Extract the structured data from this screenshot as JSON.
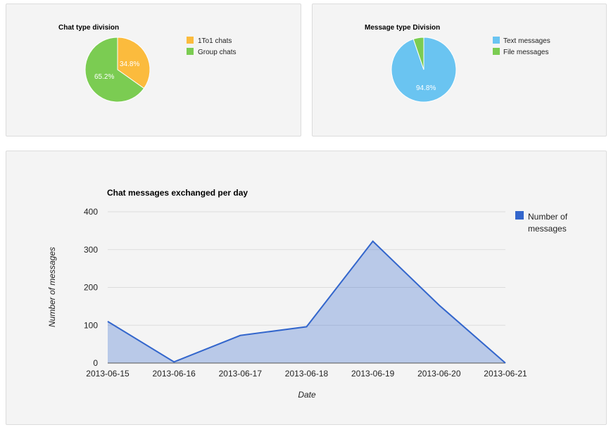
{
  "chart_data": [
    {
      "type": "pie",
      "title": "Chat type division",
      "categories": [
        "1To1 chats",
        "Group chats"
      ],
      "values": [
        34.8,
        65.2
      ],
      "labels": [
        "34.8%",
        "65.2%"
      ],
      "colors": [
        "#fbbb3d",
        "#7bcc52"
      ],
      "legend": "right"
    },
    {
      "type": "pie",
      "title": "Message type Division",
      "categories": [
        "Text messages",
        "File messages"
      ],
      "values": [
        94.8,
        5.2
      ],
      "labels": [
        "94.8%",
        ""
      ],
      "colors": [
        "#6ac4f1",
        "#7bcc52"
      ],
      "legend": "right"
    },
    {
      "type": "area",
      "title": "Chat messages exchanged per day",
      "xlabel": "Date",
      "ylabel": "Number of messages",
      "categories": [
        "2013-06-15",
        "2013-06-16",
        "2013-06-17",
        "2013-06-18",
        "2013-06-19",
        "2013-06-20",
        "2013-06-21"
      ],
      "series": [
        {
          "name": "Number of messages",
          "values": [
            110,
            3,
            73,
            96,
            322,
            153,
            0
          ],
          "color": "#3366cc"
        }
      ],
      "ylim": [
        0,
        400
      ],
      "yticks": [
        "0",
        "100",
        "200",
        "300",
        "400"
      ],
      "grid": true,
      "legend": "right"
    }
  ]
}
